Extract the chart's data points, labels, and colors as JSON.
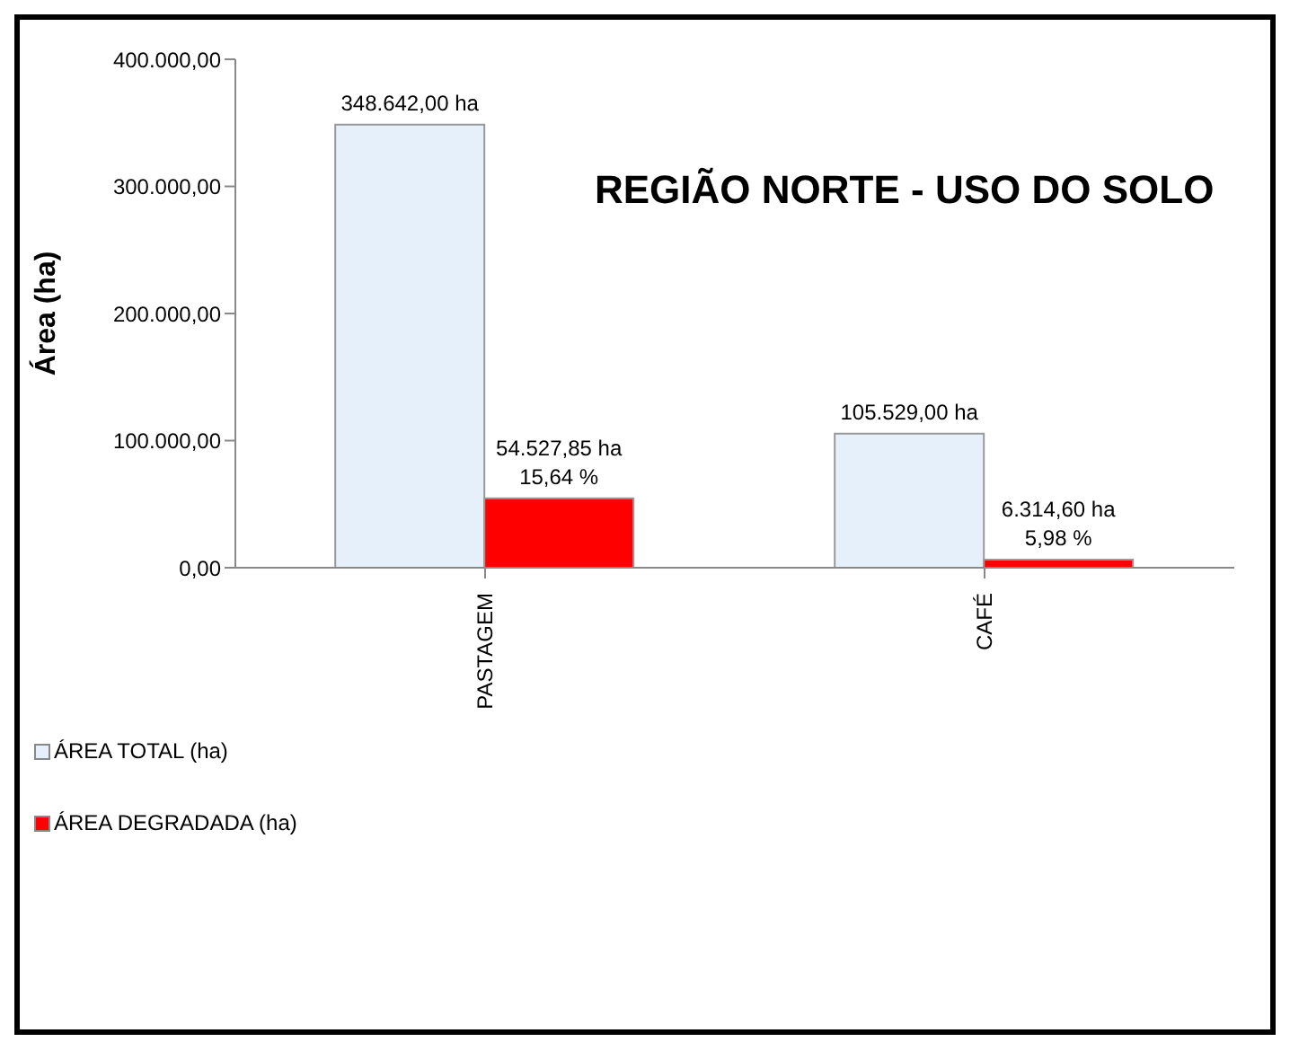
{
  "chart_data": {
    "type": "bar",
    "title": "REGIÃO NORTE - USO DO SOLO",
    "ylabel": "Área (ha)",
    "categories": [
      "PASTAGEM",
      "CAFÉ"
    ],
    "series": [
      {
        "name": "ÁREA TOTAL (ha)",
        "color": "#e6f0fa",
        "values": [
          348642,
          105529
        ],
        "value_labels": [
          "348.642,00 ha",
          "105.529,00 ha"
        ]
      },
      {
        "name": "ÁREA DEGRADADA (ha)",
        "color": "#ff0000",
        "values": [
          54527.85,
          6314.6
        ],
        "value_labels": [
          "54.527,85  ha\n15,64 %",
          "6.314,60 ha\n5,98 %"
        ]
      }
    ],
    "ylim": [
      0,
      400000
    ],
    "yticks": [
      {
        "value": 0,
        "label": "0,00"
      },
      {
        "value": 100000,
        "label": "100.000,00"
      },
      {
        "value": 200000,
        "label": "200.000,00"
      },
      {
        "value": 300000,
        "label": "300.000,00"
      },
      {
        "value": 400000,
        "label": "400.000,00"
      }
    ],
    "grid": false,
    "legend": "bottom left"
  }
}
